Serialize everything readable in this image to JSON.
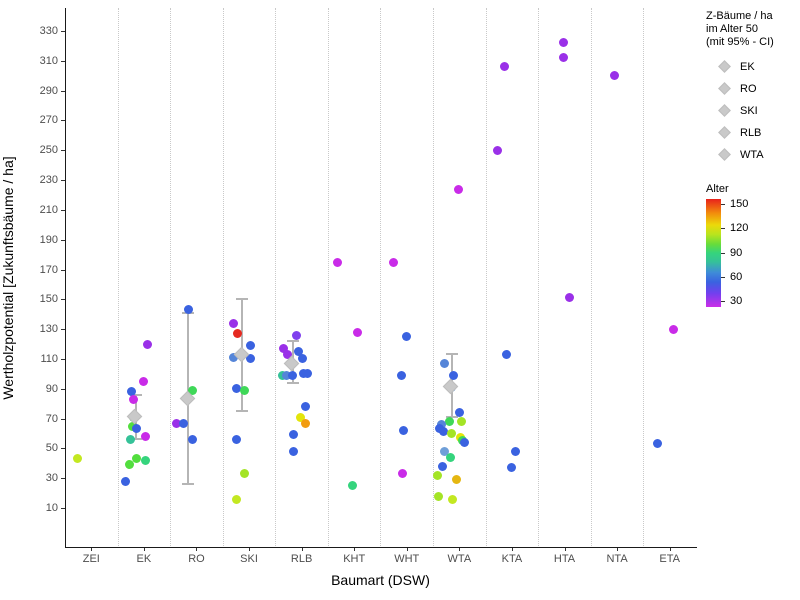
{
  "chart_data": {
    "type": "scatter",
    "xlabel": "Baumart (DSW)",
    "ylabel": "Wertholzpotential [Zukunftsbäume / ha]",
    "categories": [
      "ZEI",
      "EK",
      "RO",
      "SKI",
      "RLB",
      "KHT",
      "WHT",
      "WTA",
      "KTA",
      "HTA",
      "NTA",
      "ETA"
    ],
    "y_ticks": [
      10,
      30,
      50,
      70,
      90,
      110,
      130,
      150,
      170,
      190,
      210,
      230,
      250,
      270,
      290,
      310,
      330
    ],
    "ylim": [
      0,
      340
    ],
    "grid": "vertical-dotted",
    "colors": {
      "magenta": "#c92be8",
      "purple": "#9a30e8",
      "violet": "#8040ee",
      "blue": "#3a62e0",
      "steel": "#5585d8",
      "lightblue": "#6f9fd8",
      "teal": "#35c298",
      "spring": "#35d47d",
      "green": "#3fd858",
      "bgreen": "#52de3e",
      "ygreen": "#a4e426",
      "chart": "#c3e821",
      "yellow": "#e3e50b",
      "gold": "#e5b711",
      "orange": "#f29c10",
      "red": "#e52920",
      "diamond_gray": "#c9c9c9",
      "errorbar_gray": "#b5b5b5"
    },
    "points": [
      {
        "c": "ZEI",
        "v": 43,
        "col": "chart",
        "dx": -13.5
      },
      {
        "c": "EK",
        "v": 120,
        "col": "purple",
        "dx": 3.5
      },
      {
        "c": "EK",
        "v": 95,
        "col": "magenta",
        "dx": -0.8
      },
      {
        "c": "EK",
        "v": 88,
        "col": "blue",
        "dx": -12
      },
      {
        "c": "EK",
        "v": 83,
        "col": "magenta",
        "dx": -10.4
      },
      {
        "c": "EK",
        "v": 71,
        "col": "green",
        "dx": -10
      },
      {
        "c": "EK",
        "v": 65,
        "col": "bgreen",
        "dx": -11.4
      },
      {
        "c": "EK",
        "v": 63,
        "col": "blue",
        "dx": -7
      },
      {
        "c": "EK",
        "v": 58,
        "col": "magenta",
        "dx": 1.3
      },
      {
        "c": "EK",
        "v": 56,
        "col": "teal",
        "dx": -13.8
      },
      {
        "c": "EK",
        "v": 43,
        "col": "bgreen",
        "dx": -7
      },
      {
        "c": "EK",
        "v": 42,
        "col": "spring",
        "dx": 2
      },
      {
        "c": "EK",
        "v": 39,
        "col": "bgreen",
        "dx": -14.8
      },
      {
        "c": "EK",
        "v": 28,
        "col": "blue",
        "dx": -18
      },
      {
        "c": "RO",
        "v": 143,
        "col": "blue",
        "dx": -8
      },
      {
        "c": "RO",
        "v": 89,
        "col": "green",
        "dx": -3.5
      },
      {
        "c": "RO",
        "v": 67,
        "col": "purple",
        "dx": -20.3
      },
      {
        "c": "RO",
        "v": 67,
        "col": "blue",
        "dx": -13
      },
      {
        "c": "RO",
        "v": 56,
        "col": "blue",
        "dx": -3.5
      },
      {
        "c": "SKI",
        "v": 134,
        "col": "purple",
        "dx": -16
      },
      {
        "c": "SKI",
        "v": 127,
        "col": "red",
        "dx": -12
      },
      {
        "c": "SKI",
        "v": 119,
        "col": "blue",
        "dx": 1.3
      },
      {
        "c": "SKI",
        "v": 111,
        "col": "steel",
        "dx": -16
      },
      {
        "c": "SKI",
        "v": 110,
        "col": "blue",
        "dx": 1.3
      },
      {
        "c": "SKI",
        "v": 90,
        "col": "blue",
        "dx": -12.8
      },
      {
        "c": "SKI",
        "v": 89,
        "col": "green",
        "dx": -4.8
      },
      {
        "c": "SKI",
        "v": 56,
        "col": "blue",
        "dx": -12.8
      },
      {
        "c": "SKI",
        "v": 33,
        "col": "ygreen",
        "dx": -4.8
      },
      {
        "c": "SKI",
        "v": 16,
        "col": "chart",
        "dx": -12.8
      },
      {
        "c": "RLB",
        "v": 126,
        "col": "violet",
        "dx": -5
      },
      {
        "c": "RLB",
        "v": 117,
        "col": "purple",
        "dx": -18.5
      },
      {
        "c": "RLB",
        "v": 113,
        "col": "purple",
        "dx": -14.5
      },
      {
        "c": "RLB",
        "v": 115,
        "col": "blue",
        "dx": -3
      },
      {
        "c": "RLB",
        "v": 110,
        "col": "blue",
        "dx": 0.5
      },
      {
        "c": "RLB",
        "v": 99,
        "col": "teal",
        "dx": -19.5
      },
      {
        "c": "RLB",
        "v": 99,
        "col": "steel",
        "dx": -15.3
      },
      {
        "c": "RLB",
        "v": 99,
        "col": "blue",
        "dx": -9.5
      },
      {
        "c": "RLB",
        "v": 100,
        "col": "blue",
        "dx": 2
      },
      {
        "c": "RLB",
        "v": 100,
        "col": "blue",
        "dx": 5.8
      },
      {
        "c": "RLB",
        "v": 78,
        "col": "blue",
        "dx": 3.8
      },
      {
        "c": "RLB",
        "v": 71,
        "col": "yellow",
        "dx": -1.3
      },
      {
        "c": "RLB",
        "v": 67,
        "col": "orange",
        "dx": 3.8
      },
      {
        "c": "RLB",
        "v": 59,
        "col": "blue",
        "dx": -8.5
      },
      {
        "c": "RLB",
        "v": 48,
        "col": "blue",
        "dx": -8
      },
      {
        "c": "KHT",
        "v": 175,
        "col": "magenta",
        "dx": -16.5
      },
      {
        "c": "KHT",
        "v": 128,
        "col": "magenta",
        "dx": 3.5
      },
      {
        "c": "KHT",
        "v": 25,
        "col": "spring",
        "dx": -2
      },
      {
        "c": "WHT",
        "v": 175,
        "col": "magenta",
        "dx": -13.5
      },
      {
        "c": "WHT",
        "v": 125,
        "col": "blue",
        "dx": -0.3
      },
      {
        "c": "WHT",
        "v": 99,
        "col": "blue",
        "dx": -5.5
      },
      {
        "c": "WHT",
        "v": 62,
        "col": "blue",
        "dx": -3
      },
      {
        "c": "WHT",
        "v": 33,
        "col": "magenta",
        "dx": -4.5
      },
      {
        "c": "WTA",
        "v": 224,
        "col": "magenta",
        "dx": -0.5
      },
      {
        "c": "WTA",
        "v": 107,
        "col": "steel",
        "dx": -14.5
      },
      {
        "c": "WTA",
        "v": 99,
        "col": "blue",
        "dx": -6
      },
      {
        "c": "WTA",
        "v": 91,
        "col": "lightblue",
        "dx": -7.8
      },
      {
        "c": "WTA",
        "v": 74,
        "col": "blue",
        "dx": 0.3
      },
      {
        "c": "WTA",
        "v": 68,
        "col": "green",
        "dx": -9.8
      },
      {
        "c": "WTA",
        "v": 68,
        "col": "ygreen",
        "dx": 2.3
      },
      {
        "c": "WTA",
        "v": 66,
        "col": "steel",
        "dx": -18
      },
      {
        "c": "WTA",
        "v": 63,
        "col": "blue",
        "dx": -19.5
      },
      {
        "c": "WTA",
        "v": 61,
        "col": "blue",
        "dx": -15.5
      },
      {
        "c": "WTA",
        "v": 60,
        "col": "ygreen",
        "dx": -8
      },
      {
        "c": "WTA",
        "v": 57,
        "col": "yellow",
        "dx": 1.3
      },
      {
        "c": "WTA",
        "v": 55,
        "col": "green",
        "dx": 3.5
      },
      {
        "c": "WTA",
        "v": 54,
        "col": "blue",
        "dx": 5.3
      },
      {
        "c": "WTA",
        "v": 48,
        "col": "lightblue",
        "dx": -14.8
      },
      {
        "c": "WTA",
        "v": 44,
        "col": "spring",
        "dx": -8.8
      },
      {
        "c": "WTA",
        "v": 38,
        "col": "blue",
        "dx": -17
      },
      {
        "c": "WTA",
        "v": 32,
        "col": "ygreen",
        "dx": -21.5
      },
      {
        "c": "WTA",
        "v": 29,
        "col": "gold",
        "dx": -2.8
      },
      {
        "c": "WTA",
        "v": 18,
        "col": "ygreen",
        "dx": -20.5
      },
      {
        "c": "WTA",
        "v": 16,
        "col": "chart",
        "dx": -7
      },
      {
        "c": "KTA",
        "v": 306,
        "col": "purple",
        "dx": -7
      },
      {
        "c": "KTA",
        "v": 250,
        "col": "purple",
        "dx": -14.5
      },
      {
        "c": "KTA",
        "v": 113,
        "col": "blue",
        "dx": -5.3
      },
      {
        "c": "KTA",
        "v": 48,
        "col": "blue",
        "dx": 3.8
      },
      {
        "c": "KTA",
        "v": 37,
        "col": "blue",
        "dx": -0.5
      },
      {
        "c": "HTA",
        "v": 322,
        "col": "purple",
        "dx": -1.5
      },
      {
        "c": "HTA",
        "v": 312,
        "col": "purple",
        "dx": -1.5
      },
      {
        "c": "HTA",
        "v": 151,
        "col": "purple",
        "dx": 5.3
      },
      {
        "c": "NTA",
        "v": 300,
        "col": "purple",
        "dx": -3
      },
      {
        "c": "ETA",
        "v": 130,
        "col": "magenta",
        "dx": 4
      },
      {
        "c": "ETA",
        "v": 53,
        "col": "blue",
        "dx": -12
      }
    ],
    "ci_diamonds": [
      {
        "c": "EK",
        "v": 71,
        "lo": 56,
        "hi": 86,
        "dx": -8
      },
      {
        "c": "RO",
        "v": 83,
        "lo": 26,
        "hi": 141,
        "dx": -8
      },
      {
        "c": "SKI",
        "v": 112,
        "lo": 75,
        "hi": 150,
        "dx": -7
      },
      {
        "c": "RLB",
        "v": 106,
        "lo": 94,
        "hi": 122,
        "dx": -9
      },
      {
        "c": "WTA",
        "v": 91,
        "lo": 71,
        "hi": 113,
        "dx": -7.8
      }
    ],
    "legend": {
      "title_line1": "Z-Bäume / ha",
      "title_line2": "im Alter 50",
      "title_line3": "(mit 95% - CI)",
      "items": [
        "EK",
        "RO",
        "SKI",
        "RLB",
        "WTA"
      ],
      "colorbar_title": "Alter",
      "colorbar_ticks": [
        150,
        120,
        90,
        60,
        30
      ],
      "colorbar_range": [
        23,
        156
      ]
    }
  }
}
